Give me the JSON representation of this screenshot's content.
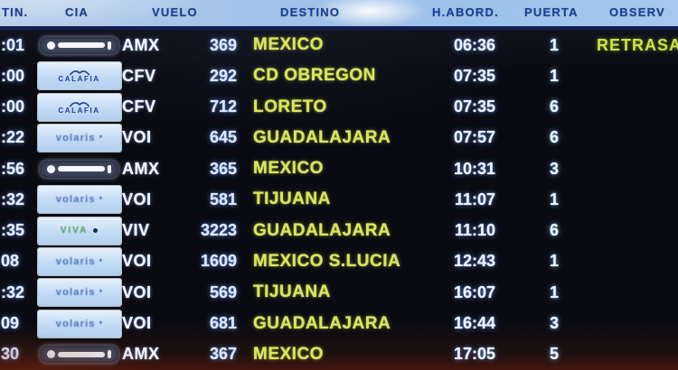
{
  "board": {
    "columns": [
      "TIN.",
      "CIA",
      "VUELO",
      "DESTINO",
      "H.ABORD.",
      "PUERTA",
      "OBSERV"
    ],
    "rows": [
      {
        "time": ":01",
        "airline": "aeromexico",
        "cia": "AMX",
        "vuelo": "369",
        "destino": "MEXICO",
        "h_abord": "06:36",
        "puerta": "1",
        "observ": "RETRASA"
      },
      {
        "time": ":00",
        "airline": "calafia",
        "cia": "CFV",
        "vuelo": "292",
        "destino": "CD OBREGON",
        "h_abord": "07:35",
        "puerta": "1",
        "observ": ""
      },
      {
        "time": ":00",
        "airline": "calafia",
        "cia": "CFV",
        "vuelo": "712",
        "destino": "LORETO",
        "h_abord": "07:35",
        "puerta": "6",
        "observ": ""
      },
      {
        "time": ":22",
        "airline": "volaris",
        "cia": "VOI",
        "vuelo": "645",
        "destino": "GUADALAJARA",
        "h_abord": "07:57",
        "puerta": "6",
        "observ": ""
      },
      {
        "time": ":56",
        "airline": "aeromexico",
        "cia": "AMX",
        "vuelo": "365",
        "destino": "MEXICO",
        "h_abord": "10:31",
        "puerta": "3",
        "observ": ""
      },
      {
        "time": ":32",
        "airline": "volaris",
        "cia": "VOI",
        "vuelo": "581",
        "destino": "TIJUANA",
        "h_abord": "11:07",
        "puerta": "1",
        "observ": ""
      },
      {
        "time": ":35",
        "airline": "viva",
        "cia": "VIV",
        "vuelo": "3223",
        "destino": "GUADALAJARA",
        "h_abord": "11:10",
        "puerta": "6",
        "observ": ""
      },
      {
        "time": "08",
        "airline": "volaris",
        "cia": "VOI",
        "vuelo": "1609",
        "destino": "MEXICO S.LUCIA",
        "h_abord": "12:43",
        "puerta": "1",
        "observ": ""
      },
      {
        "time": ":32",
        "airline": "volaris",
        "cia": "VOI",
        "vuelo": "569",
        "destino": "TIJUANA",
        "h_abord": "16:07",
        "puerta": "1",
        "observ": ""
      },
      {
        "time": "09",
        "airline": "volaris",
        "cia": "VOI",
        "vuelo": "681",
        "destino": "GUADALAJARA",
        "h_abord": "16:44",
        "puerta": "3",
        "observ": ""
      },
      {
        "time": "30",
        "airline": "aeromexico",
        "cia": "AMX",
        "vuelo": "367",
        "destino": "MEXICO",
        "h_abord": "17:05",
        "puerta": "5",
        "observ": ""
      }
    ]
  },
  "logos": {
    "calafia": {
      "label": "CALAFIA"
    },
    "volaris": {
      "label": "volaris",
      "star": "*"
    },
    "viva": {
      "label": "VIVA"
    }
  },
  "colors": {
    "header_bg": "#a3c3e8",
    "header_text": "#1c3f92",
    "destination_text": "#d9e659",
    "remark_text": "#cbe34a",
    "time_text": "#e9efff",
    "row_bg": "#0a0b12"
  }
}
